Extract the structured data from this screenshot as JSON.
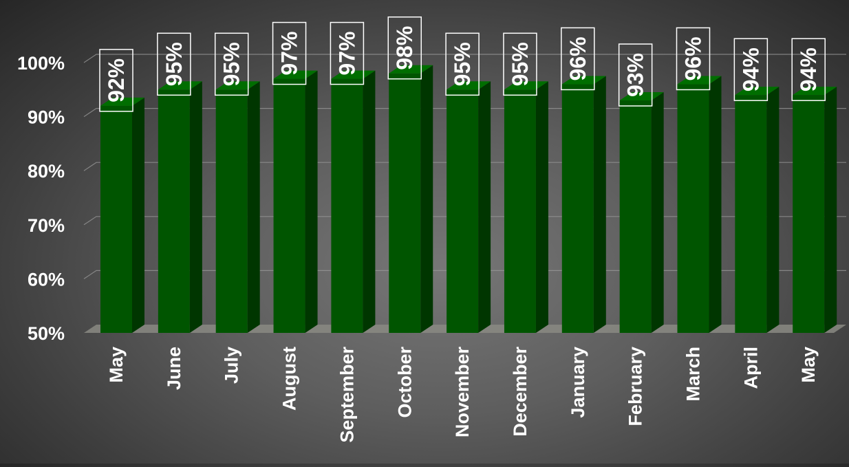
{
  "chart_data": {
    "type": "bar",
    "categories": [
      "May",
      "June",
      "July",
      "August",
      "September",
      "October",
      "November",
      "December",
      "January",
      "February",
      "March",
      "April",
      "May"
    ],
    "values": [
      92,
      95,
      95,
      97,
      97,
      98,
      95,
      95,
      96,
      93,
      96,
      94,
      94
    ],
    "data_labels": [
      "92%",
      "95%",
      "95%",
      "97%",
      "97%",
      "98%",
      "95%",
      "95%",
      "96%",
      "93%",
      "96%",
      "94%",
      "94%"
    ],
    "yticks": [
      50,
      60,
      70,
      80,
      90,
      100
    ],
    "ytick_labels": [
      "50%",
      "60%",
      "70%",
      "80%",
      "90%",
      "100%"
    ],
    "ylim": [
      50,
      100
    ],
    "grid": true,
    "legend": "none",
    "title": "",
    "xlabel": "",
    "ylabel": "",
    "style": "3d-bar",
    "colors": {
      "bar_front": "#005500",
      "bar_side": "#003600",
      "bar_top": "#006e00",
      "gridline": "#9a9a9a",
      "floor": "#8a8a82",
      "text": "#ffffff",
      "label_box_border": "#ffffff"
    }
  }
}
